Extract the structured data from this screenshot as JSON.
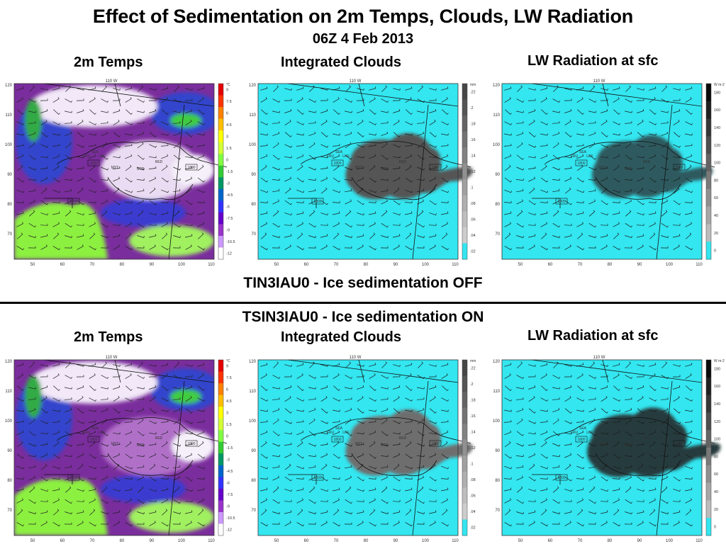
{
  "header": {
    "title": "Effect of Sedimentation on 2m Temps, Clouds, LW Radiation",
    "subtitle": "06Z 4 Feb 2013"
  },
  "top_row": {
    "label_temps": "2m Temps",
    "label_clouds": "Integrated Clouds",
    "label_lw": "LW Radiation at sfc",
    "caption": "TIN3IAU0 - Ice sedimentation OFF"
  },
  "bottom_row": {
    "heading": "TSIN3IAU0 - Ice sedimentation ON",
    "label_temps": "2m Temps",
    "label_clouds": "Integrated Clouds",
    "label_lw": "LW Radiation at sfc"
  },
  "map_text": {
    "top_lon": "110 W",
    "x_ticks": [
      "50",
      "60",
      "70",
      "80",
      "90",
      "100",
      "110"
    ],
    "y_ticks": [
      "120",
      "110",
      "100",
      "90",
      "80",
      "70"
    ],
    "places": [
      "FRU",
      "SEA",
      "LKE",
      "MYT",
      "NCR",
      "RED",
      "1800",
      "1800",
      "1800"
    ]
  },
  "colorbars": {
    "temps": {
      "unit": "°C",
      "labels": [
        "9",
        "7.5",
        "6",
        "4.5",
        "3",
        "1.5",
        "0",
        "-1.5",
        "-3",
        "-4.5",
        "-6",
        "-7.5",
        "-9",
        "-10.5",
        "-12"
      ],
      "colors": [
        "#e60000",
        "#ff3300",
        "#ff8000",
        "#ffbf00",
        "#ffff00",
        "#d4ff33",
        "#80ff40",
        "#33cc33",
        "#009966",
        "#0066cc",
        "#3333ff",
        "#6600cc",
        "#9933cc",
        "#cc99ff",
        "#ffffff"
      ]
    },
    "clouds": {
      "unit": "mm",
      "labels": [
        ".22",
        ".2",
        ".18",
        ".16",
        ".14",
        ".12",
        ".1",
        ".08",
        ".06",
        ".04",
        ".02"
      ]
    },
    "lw": {
      "unit": "W m-2",
      "labels": [
        "180",
        "160",
        "140",
        "120",
        "100",
        "80",
        "60",
        "40",
        "20",
        "0"
      ]
    }
  },
  "colors": {
    "cloud_bg": "#33e6f0",
    "temps_cold": "#7a2d9c",
    "temps_warm": "#8cf040"
  }
}
